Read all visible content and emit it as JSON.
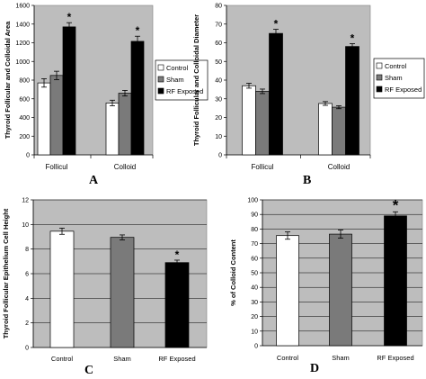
{
  "colors": {
    "plot_bg": "#bdbdbd",
    "control": "#ffffff",
    "sham": "#7a7a7a",
    "rf_exposed": "#000000"
  },
  "chart_data": [
    {
      "panel": "A",
      "type": "bar",
      "ylabel": "Thyroid Follicular and Colloidal Area",
      "ylim": [
        0,
        1600
      ],
      "yticks": [
        0,
        200,
        400,
        600,
        800,
        1000,
        1200,
        1400,
        1600
      ],
      "categories": [
        "Follicul",
        "Colloid"
      ],
      "series": [
        {
          "name": "Control",
          "values": [
            770,
            555
          ],
          "errors": [
            45,
            30
          ]
        },
        {
          "name": "Sham",
          "values": [
            850,
            660
          ],
          "errors": [
            45,
            30
          ]
        },
        {
          "name": "RF Exposed",
          "values": [
            1370,
            1215
          ],
          "errors": [
            45,
            55
          ]
        }
      ],
      "significance": [
        "",
        "",
        "*",
        "",
        "",
        "*"
      ],
      "legend": "right",
      "grid": false
    },
    {
      "panel": "B",
      "type": "bar",
      "ylabel": "Thyroid Follicular and Colloidal Diameter",
      "ylim": [
        0,
        80
      ],
      "yticks": [
        0,
        10,
        20,
        30,
        40,
        50,
        60,
        70,
        80
      ],
      "categories": [
        "Follicul",
        "Colloid"
      ],
      "series": [
        {
          "name": "Control",
          "values": [
            37,
            27.5
          ],
          "errors": [
            1.3,
            1.0
          ]
        },
        {
          "name": "Sham",
          "values": [
            34,
            25.5
          ],
          "errors": [
            1.2,
            0.8
          ]
        },
        {
          "name": "RF Exposed",
          "values": [
            65,
            58
          ],
          "errors": [
            2.2,
            1.5
          ]
        }
      ],
      "significance": [
        "",
        "",
        "*",
        "",
        "",
        "*"
      ],
      "legend": "right",
      "grid": false
    },
    {
      "panel": "C",
      "type": "bar",
      "ylabel": "Thyroid Follicular Epithelium Cell Height",
      "ylim": [
        0,
        12
      ],
      "yticks": [
        0,
        2,
        4,
        6,
        8,
        10,
        12
      ],
      "categories": [
        "Control",
        "Sham",
        "RF Exposed"
      ],
      "values": [
        9.45,
        8.95,
        6.9
      ],
      "errors": [
        0.25,
        0.2,
        0.2
      ],
      "significance": [
        "",
        "",
        "*"
      ],
      "grid": true
    },
    {
      "panel": "D",
      "type": "bar",
      "ylabel": "% of Colloid Content",
      "ylim": [
        0,
        100
      ],
      "yticks": [
        0,
        10,
        20,
        30,
        40,
        50,
        60,
        70,
        80,
        90,
        100
      ],
      "categories": [
        "Control",
        "Sham",
        "RF Exposed"
      ],
      "values": [
        75.5,
        76.5,
        89
      ],
      "errors": [
        2.5,
        2.8,
        2.8
      ],
      "significance": [
        "",
        "",
        "*"
      ],
      "grid": true
    }
  ]
}
